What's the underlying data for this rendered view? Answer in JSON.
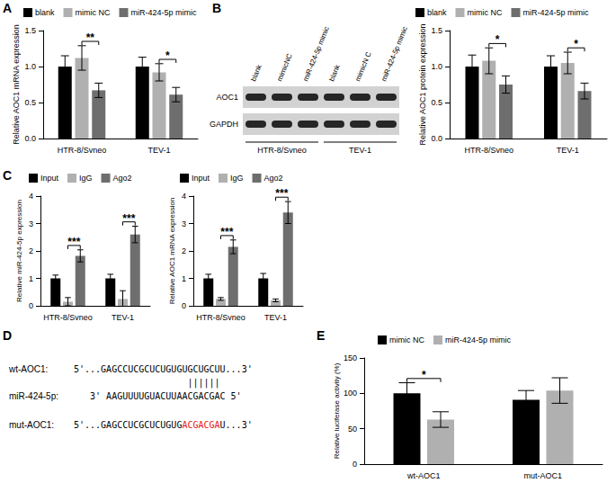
{
  "chart_data": [
    {
      "panel": "A",
      "type": "bar",
      "y_label": "Relative AOC1 mRNA expression",
      "categories": [
        "HTR-8/Svneo",
        "TEV-1"
      ],
      "series": [
        {
          "name": "blank",
          "color": "#000000",
          "values": [
            1.0,
            1.0
          ],
          "errors": [
            0.15,
            0.13
          ]
        },
        {
          "name": "mimic NC",
          "color": "#b0b0b0",
          "values": [
            1.12,
            0.92
          ],
          "errors": [
            0.17,
            0.12
          ]
        },
        {
          "name": "miR-424-5p mimic",
          "color": "#6e6e6e",
          "values": [
            0.67,
            0.61
          ],
          "errors": [
            0.1,
            0.1
          ]
        }
      ],
      "ylim": [
        0,
        1.5
      ],
      "yticks": [
        {
          "value": 0,
          "label": "0.0"
        },
        0.5,
        {
          "value": 1,
          "label": "1.0"
        },
        1.5
      ],
      "grid": false,
      "legend": "top",
      "data_labels": false,
      "significance": [
        {
          "category": "HTR-8/Svneo",
          "from": "mimic NC",
          "to": "miR-424-5p mimic",
          "label": "**"
        },
        {
          "category": "TEV-1",
          "from": "mimic NC",
          "to": "miR-424-5p mimic",
          "label": "*"
        }
      ]
    },
    {
      "panel": "B",
      "type": "bar",
      "y_label": "Relative AOC1 protein expression",
      "categories": [
        "HTR-8/Svneo",
        "TEV-1"
      ],
      "series": [
        {
          "name": "blank",
          "color": "#000000",
          "values": [
            1.0,
            1.0
          ],
          "errors": [
            0.16,
            0.15
          ]
        },
        {
          "name": "mimic NC",
          "color": "#b0b0b0",
          "values": [
            1.08,
            1.05
          ],
          "errors": [
            0.18,
            0.15
          ]
        },
        {
          "name": "miR-424-5p mimic",
          "color": "#6e6e6e",
          "values": [
            0.75,
            0.66
          ],
          "errors": [
            0.12,
            0.11
          ]
        }
      ],
      "ylim": [
        0,
        1.5
      ],
      "yticks": [
        {
          "value": 0,
          "label": "0.0"
        },
        0.5,
        {
          "value": 1,
          "label": "1.0"
        },
        1.5
      ],
      "grid": false,
      "legend": "top",
      "data_labels": false,
      "significance": [
        {
          "category": "HTR-8/Svneo",
          "from": "mimic NC",
          "to": "miR-424-5p mimic",
          "label": "*"
        },
        {
          "category": "TEV-1",
          "from": "mimic NC",
          "to": "miR-424-5p mimic",
          "label": "*"
        }
      ]
    },
    {
      "panel": "C",
      "type": "bar",
      "y_label": "Relative miR-424-5p expression",
      "categories": [
        "HTR-8/Svneo",
        "TEV-1"
      ],
      "series": [
        {
          "name": "Input",
          "color": "#000000",
          "values": [
            1.0,
            1.0
          ],
          "errors": [
            0.12,
            0.15
          ]
        },
        {
          "name": "IgG",
          "color": "#b0b0b0",
          "values": [
            0.15,
            0.25
          ],
          "errors": [
            0.15,
            0.3
          ]
        },
        {
          "name": "Ago2",
          "color": "#6e6e6e",
          "values": [
            1.82,
            2.6
          ],
          "errors": [
            0.22,
            0.3
          ]
        }
      ],
      "ylim": [
        0,
        4
      ],
      "yticks": [
        0,
        1,
        2,
        3,
        4
      ],
      "grid": false,
      "legend": "top",
      "data_labels": false,
      "significance": [
        {
          "category": "HTR-8/Svneo",
          "from": "IgG",
          "to": "Ago2",
          "label": "***"
        },
        {
          "category": "TEV-1",
          "from": "IgG",
          "to": "Ago2",
          "label": "***"
        }
      ]
    },
    {
      "panel": "C",
      "type": "bar",
      "y_label": "Relative AOC1 mRNA expression",
      "categories": [
        "HTR-8/Svneo",
        "TEV-1"
      ],
      "series": [
        {
          "name": "Input",
          "color": "#000000",
          "values": [
            1.0,
            1.0
          ],
          "errors": [
            0.15,
            0.18
          ]
        },
        {
          "name": "IgG",
          "color": "#b0b0b0",
          "values": [
            0.25,
            0.2
          ],
          "errors": [
            0.05,
            0.05
          ]
        },
        {
          "name": "Ago2",
          "color": "#6e6e6e",
          "values": [
            2.15,
            3.4
          ],
          "errors": [
            0.25,
            0.4
          ]
        }
      ],
      "ylim": [
        0,
        4
      ],
      "yticks": [
        0,
        1,
        2,
        3,
        4
      ],
      "grid": false,
      "legend": "top",
      "data_labels": false,
      "significance": [
        {
          "category": "HTR-8/Svneo",
          "from": "IgG",
          "to": "Ago2",
          "label": "***"
        },
        {
          "category": "TEV-1",
          "from": "IgG",
          "to": "Ago2",
          "label": "***"
        }
      ]
    },
    {
      "panel": "E",
      "type": "bar",
      "y_label": "Relative luciferase activity (%)",
      "categories": [
        "wt-AOC1",
        "mut-AOC1"
      ],
      "series": [
        {
          "name": "mimic NC",
          "color": "#000000",
          "values": [
            100,
            91
          ],
          "errors": [
            15,
            13
          ]
        },
        {
          "name": "miR-424-5p mimic",
          "color": "#b0b0b0",
          "values": [
            63,
            104
          ],
          "errors": [
            11,
            18
          ]
        }
      ],
      "ylim": [
        0,
        150
      ],
      "yticks": [
        0,
        50,
        100,
        150
      ],
      "grid": false,
      "legend": "top",
      "data_labels": false,
      "significance": [
        {
          "category": "wt-AOC1",
          "from": "mimic NC",
          "to": "miR-424-5p mimic",
          "label": "*"
        }
      ]
    }
  ],
  "blot": {
    "panel": "B",
    "lanes": [
      "blank",
      "mimicNC",
      "miR-424-5p mimic",
      "blank",
      "mimicN C",
      "miR-424-5p mimic"
    ],
    "rows": [
      "AOC1",
      "GAPDH"
    ],
    "groups": [
      {
        "label": "HTR-8/Svneo",
        "lanes": 3
      },
      {
        "label": "TEV-1",
        "lanes": 3
      }
    ]
  },
  "sequence_diagram": {
    "panel": "D",
    "rows": [
      {
        "label": "wt-AOC1:",
        "segments": [
          {
            "text": "5'...GAGCCUCGCUCUGUGUGCUGCUU...3'"
          }
        ]
      },
      {
        "segments": [
          {
            "text": "||||||"
          }
        ]
      },
      {
        "label": "miR-424-5p:",
        "segments": [
          {
            "text": "3' AAGUUUUGUACUUAACGACGAC 5'"
          }
        ]
      },
      {
        "label": "mut-AOC1:",
        "segments": [
          {
            "text": "5'...GAGCCUCGCUCUGUG"
          },
          {
            "text": "ACGACGA",
            "color": "#e8141c"
          },
          {
            "text": "U...3'"
          }
        ]
      }
    ]
  }
}
